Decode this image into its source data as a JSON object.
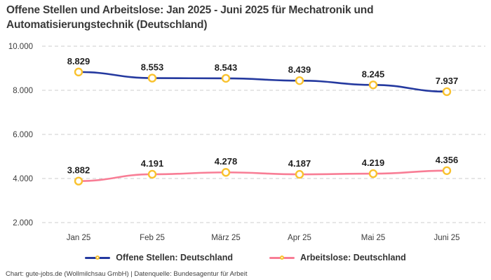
{
  "title": "Offene Stellen und Arbeitslose: Jan 2025 - Juni 2025 für Mechatronik und Automatisierungstechnik (Deutschland)",
  "footer": "Chart: gute-jobs.de (Wollmilchsau GmbH) | Datenquelle: Bundesagentur für Arbeit",
  "colors": {
    "background": "#ffffff",
    "title_text": "#3a3a3a",
    "grid": "#cccccc",
    "tick_text": "#3c3c3c",
    "data_label_text": "#1f1f1f",
    "marker_fill": "#ffffff",
    "marker_stroke": "#f9c22e"
  },
  "chart_data": {
    "type": "line",
    "title": "Offene Stellen und Arbeitslose: Jan 2025 - Juni 2025 für Mechatronik und Automatisierungstechnik (Deutschland)",
    "categories": [
      "Jan 25",
      "Feb 25",
      "März 25",
      "Apr 25",
      "Mai 25",
      "Juni 25"
    ],
    "series": [
      {
        "name": "Offene Stellen: Deutschland",
        "color": "#24399f",
        "values": [
          8829,
          8553,
          8543,
          8439,
          8245,
          7937
        ],
        "labels": [
          "8.829",
          "8.553",
          "8.543",
          "8.439",
          "8.245",
          "7.937"
        ]
      },
      {
        "name": "Arbeitslose: Deutschland",
        "color": "#f87d95",
        "values": [
          3882,
          4191,
          4278,
          4187,
          4219,
          4356
        ],
        "labels": [
          "3.882",
          "4.191",
          "4.278",
          "4.187",
          "4.219",
          "4.356"
        ]
      }
    ],
    "y_ticks": [
      2000,
      4000,
      6000,
      8000,
      10000
    ],
    "y_tick_labels": [
      "2.000",
      "4.000",
      "6.000",
      "8.000",
      "10.000"
    ],
    "ylim": [
      2000,
      10000
    ],
    "grid": "horizontal-dashed",
    "legend_position": "bottom",
    "marker": {
      "fill": "#ffffff",
      "stroke": "#f9c22e"
    },
    "xlabel": "",
    "ylabel": ""
  }
}
